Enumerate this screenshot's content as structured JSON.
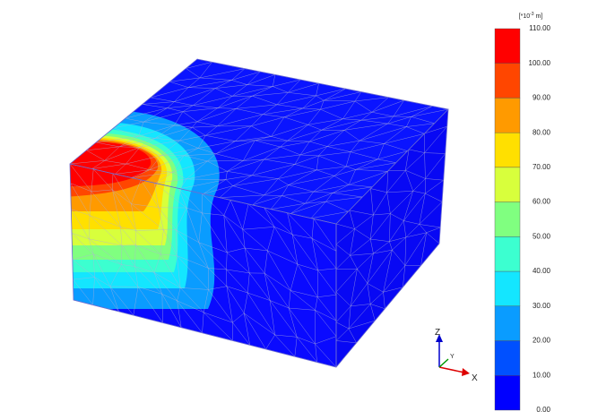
{
  "legend": {
    "unit": {
      "prefix": "[*10",
      "exponent": "-3",
      "suffix": " m]"
    },
    "labels": [
      "110.00",
      "100.00",
      "90.00",
      "80.00",
      "70.00",
      "60.00",
      "50.00",
      "40.00",
      "30.00",
      "20.00",
      "10.00",
      "0.00"
    ],
    "colors": [
      "#ff0000",
      "#ff4600",
      "#ff9a00",
      "#ffe000",
      "#d8ff3c",
      "#80ff80",
      "#3cffd0",
      "#14e6ff",
      "#0a9cff",
      "#0050ff",
      "#0000ff"
    ]
  },
  "axes": {
    "x": "X",
    "y": "Y",
    "z": "Z"
  }
}
